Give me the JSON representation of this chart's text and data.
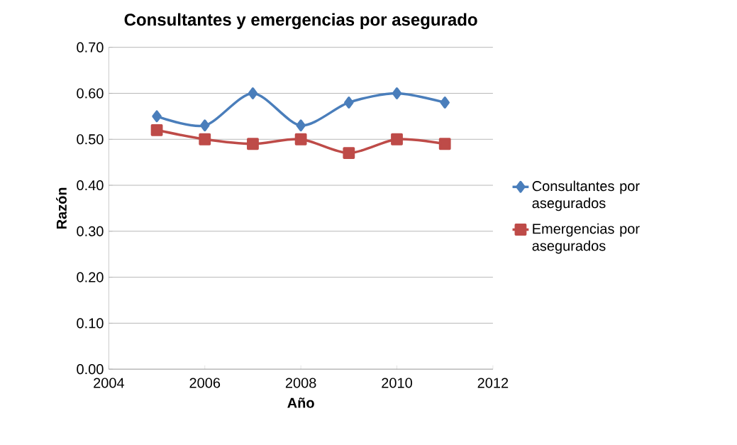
{
  "chart_data": {
    "type": "line",
    "title": "Consultantes y emergencias por asegurado",
    "xlabel": "Año",
    "ylabel": "Razón",
    "x": [
      2005,
      2006,
      2007,
      2008,
      2009,
      2010,
      2011
    ],
    "series": [
      {
        "name": "Consultantes por asegurados",
        "color": "#4a7ebb",
        "marker": "diamond",
        "values": [
          0.55,
          0.53,
          0.6,
          0.53,
          0.58,
          0.6,
          0.58
        ]
      },
      {
        "name": "Emergencias por asegurados",
        "color": "#be4b48",
        "marker": "square",
        "values": [
          0.52,
          0.5,
          0.49,
          0.5,
          0.47,
          0.5,
          0.49
        ]
      }
    ],
    "xlim": [
      2004,
      2012
    ],
    "xticks": [
      2004,
      2006,
      2008,
      2010,
      2012
    ],
    "ylim": [
      0,
      0.7
    ],
    "yticks": [
      {
        "value": 0,
        "label": "0.00"
      },
      {
        "value": 0.1,
        "label": "0.10"
      },
      {
        "value": 0.2,
        "label": "0.20"
      },
      {
        "value": 0.3,
        "label": "0.30"
      },
      {
        "value": 0.4,
        "label": "0.40"
      },
      {
        "value": 0.5,
        "label": "0.50"
      },
      {
        "value": 0.6,
        "label": "0.60"
      },
      {
        "value": 0.7,
        "label": "0.70"
      }
    ],
    "grid": "y",
    "legend": "right"
  }
}
